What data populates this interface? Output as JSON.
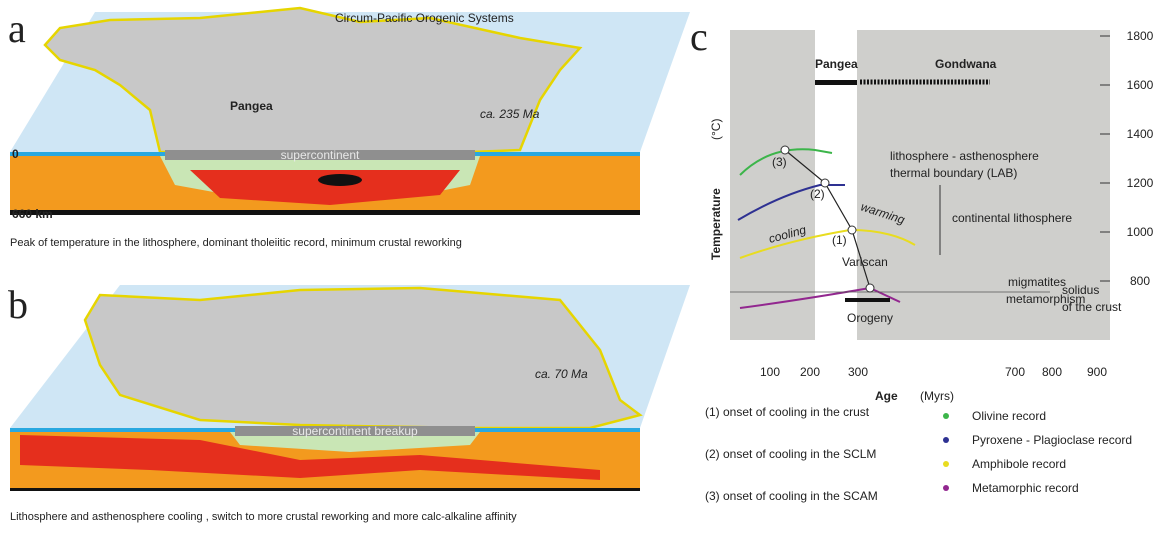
{
  "panel_a": {
    "label": "a",
    "ocean_label": "Circum-Pacific Orogenic Systems",
    "continent_label": "Pangea",
    "age_label": "ca. 235 Ma",
    "bar_label": "supercontinent",
    "depth_top": "0",
    "depth_bottom": "660 km",
    "caption": "Peak of temperature in the lithosphere, dominant tholeiitic record, minimum crustal reworking"
  },
  "panel_b": {
    "label": "b",
    "age_label": "ca. 70 Ma",
    "bar_label": "supercontinent breakup",
    "caption": "Lithosphere and asthenosphere cooling , switch to more crustal reworking and more calc-alkaline affinity"
  },
  "panel_c": {
    "label": "c",
    "y_axis_title": "Temperature",
    "y_axis_unit": "(°C)",
    "x_axis_title": "Age",
    "x_axis_unit": "(Myrs)",
    "yticks": [
      "1800",
      "1600",
      "1400",
      "1200",
      "1000",
      "800"
    ],
    "xticks": [
      "100",
      "200",
      "300",
      "700",
      "800",
      "900"
    ],
    "eras": [
      "Pangea",
      "Gondwana"
    ],
    "annotations": [
      "lithosphere - asthenosphere",
      "thermal boundary (LAB)",
      "continental lithosphere",
      "warming",
      "cooling",
      "Variscan",
      "Orogeny",
      "migmatites",
      "metamorphism",
      "solidus",
      "of the crust",
      "(1)",
      "(2)",
      "(3)"
    ],
    "notes": [
      "(1) onset of cooling in the crust",
      "(2) onset of cooling in the SCLM",
      "(3) onset of cooling in the SCAM"
    ],
    "legend": [
      {
        "label": "Olivine record",
        "color": "#3cb54a"
      },
      {
        "label": "Pyroxene - Plagioclase record",
        "color": "#2e3192"
      },
      {
        "label": "Amphibole record",
        "color": "#e8dc20"
      },
      {
        "label": "Metamorphic record",
        "color": "#92278f"
      }
    ]
  }
}
